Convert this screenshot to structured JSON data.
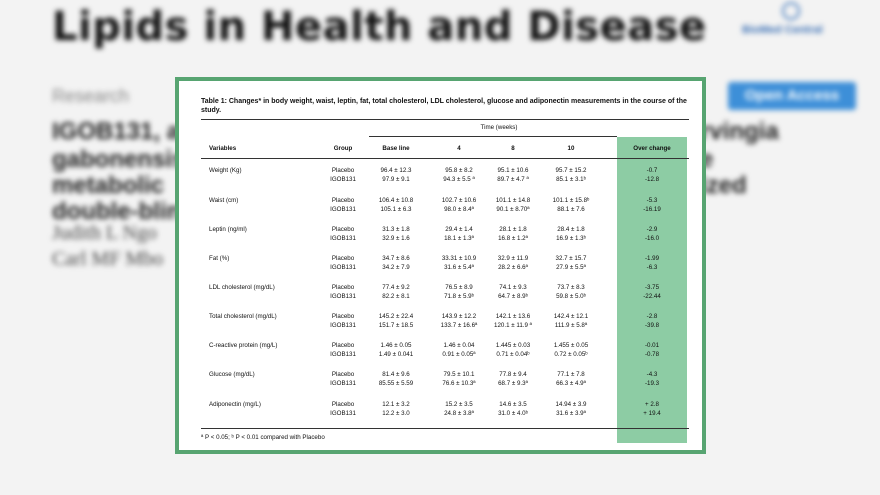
{
  "background": {
    "journal_title": "Lipids in Health and Disease",
    "logo_text": "BioMed Central",
    "section": "Research",
    "open_access": "Open Access",
    "title_lines": [
      "IGOB131, a",
      "gabonensis,",
      "metabolic",
      "double-blin"
    ],
    "title_right": [
      "rvingia",
      "e",
      "ized"
    ],
    "author_lines": [
      "Judith L Ngo",
      "Carl MF Mbo"
    ],
    "colors": {
      "accent_border": "#57a471",
      "highlight": "#8dcca4",
      "open_access_bg": "#3d8fd8"
    }
  },
  "table": {
    "caption": "Table 1: Changes* in body weight, waist, leptin, fat, total cholesterol, LDL cholesterol, glucose and adiponectin measurements in the course of the study.",
    "time_header": "Time (weeks)",
    "columns": [
      "Variables",
      "Group",
      "Base line",
      "4",
      "8",
      "10",
      "Over change"
    ],
    "rows": [
      {
        "variable": "Weight (Kg)",
        "groups": [
          "Placebo",
          "IGOB131"
        ],
        "baseline": [
          "96.4 ± 12.3",
          "97.9 ± 9.1"
        ],
        "w4": [
          "95.8 ± 8.2",
          "94.3 ± 5.5 ª"
        ],
        "w8": [
          "95.1 ± 10.6",
          "89.7 ± 4.7 ª"
        ],
        "w10": [
          "95.7 ± 15.2",
          "85.1 ± 3.1ᵇ"
        ],
        "change": [
          "-0.7",
          "-12.8"
        ]
      },
      {
        "variable": "Waist (cm)",
        "groups": [
          "Placebo",
          "IGOB131"
        ],
        "baseline": [
          "106.4 ± 10.8",
          "105.1 ± 6.3"
        ],
        "w4": [
          "102.7 ± 10.6",
          "98.0 ± 8.4ª"
        ],
        "w8": [
          "101.1 ± 14.8",
          "90.1 ± 8.70ª"
        ],
        "w10": [
          "101.1 ± 15.8ᵇ",
          "88.1 ± 7.6"
        ],
        "change": [
          "-5.3",
          "-16.19"
        ]
      },
      {
        "variable": "Leptin (ng/ml)",
        "groups": [
          "Placebo",
          "IGOB131"
        ],
        "baseline": [
          "31.3 ± 1.8",
          "32.9 ± 1.6"
        ],
        "w4": [
          "29.4 ± 1.4",
          "18.1 ± 1.3ª"
        ],
        "w8": [
          "28.1 ± 1.8",
          "16.8 ± 1.2ª"
        ],
        "w10": [
          "28.4 ± 1.8",
          "16.9 ± 1.3ᵇ"
        ],
        "change": [
          "-2.9",
          "-16.0"
        ]
      },
      {
        "variable": "Fat (%)",
        "groups": [
          "Placebo",
          "IGOB131"
        ],
        "baseline": [
          "34.7 ± 8.6",
          "34.2 ± 7.9"
        ],
        "w4": [
          "33.31 ± 10.9",
          "31.6 ± 5.4ª"
        ],
        "w8": [
          "32.9 ± 11.9",
          "28.2 ± 6.6ª"
        ],
        "w10": [
          "32.7 ± 15.7",
          "27.9 ± 5.5ª"
        ],
        "change": [
          "-1.99",
          "-6.3"
        ]
      },
      {
        "variable": "LDL cholesterol (mg/dL)",
        "groups": [
          "Placebo",
          "IGOB131"
        ],
        "baseline": [
          "77.4 ± 9.2",
          "82.2 ± 8.1"
        ],
        "w4": [
          "76.5 ± 8.9",
          "71.8 ± 5.9ᵇ"
        ],
        "w8": [
          "74.1 ± 9.3",
          "64.7 ± 8.9ᵇ"
        ],
        "w10": [
          "73.7 ± 8.3",
          "59.8 ± 5.0ᵇ"
        ],
        "change": [
          "-3.75",
          "-22.44"
        ]
      },
      {
        "variable": "Total cholesterol (mg/dL)",
        "groups": [
          "Placebo",
          "IGOB131"
        ],
        "baseline": [
          "145.2 ± 22.4",
          "151.7 ± 18.5"
        ],
        "w4": [
          "143.9 ± 12.2",
          "133.7 ± 16.6ª"
        ],
        "w8": [
          "142.1 ± 13.6",
          "120.1 ± 11.9 ª"
        ],
        "w10": [
          "142.4 ± 12.1",
          "111.9 ± 5.8ª"
        ],
        "change": [
          "-2.8",
          "-39.8"
        ]
      },
      {
        "variable": "C-reactive protein (mg/L)",
        "groups": [
          "Placebo",
          "IGOB131"
        ],
        "baseline": [
          "1.46 ± 0.05",
          "1.49 ± 0.041"
        ],
        "w4": [
          "1.46 ± 0.04",
          "0.91 ± 0.05ª"
        ],
        "w8": [
          "1.445 ± 0.03",
          "0.71 ± 0.04ᵇ"
        ],
        "w10": [
          "1.455 ± 0.05",
          "0.72 ± 0.05ᵇ"
        ],
        "change": [
          "-0.01",
          "-0.78"
        ]
      },
      {
        "variable": "Glucose (mg/dL)",
        "groups": [
          "Placebo",
          "IGOB131"
        ],
        "baseline": [
          "81.4 ± 9.6",
          "85.55 ± 5.59"
        ],
        "w4": [
          "79.5 ± 10.1",
          "76.6 ± 10.3ª"
        ],
        "w8": [
          "77.8 ± 9.4",
          "68.7 ± 9.3ª"
        ],
        "w10": [
          "77.1 ± 7.8",
          "66.3 ± 4.9ª"
        ],
        "change": [
          "-4.3",
          "-19.3"
        ]
      },
      {
        "variable": "Adiponectin (mg/L)",
        "groups": [
          "Placebo",
          "IGOB131"
        ],
        "baseline": [
          "12.1 ± 3.2",
          "12.2 ± 3.0"
        ],
        "w4": [
          "15.2 ± 3.5",
          "24.8 ± 3.8ª"
        ],
        "w8": [
          "14.6 ± 3.5",
          "31.0 ± 4.0ᵇ"
        ],
        "w10": [
          "14.94 ± 3.9",
          "31.6 ± 3.9ª"
        ],
        "change": [
          "+ 2.8",
          "+ 19.4"
        ]
      }
    ],
    "footnote": "ª P < 0.05; ᵇ P < 0.01 compared with Placebo"
  }
}
